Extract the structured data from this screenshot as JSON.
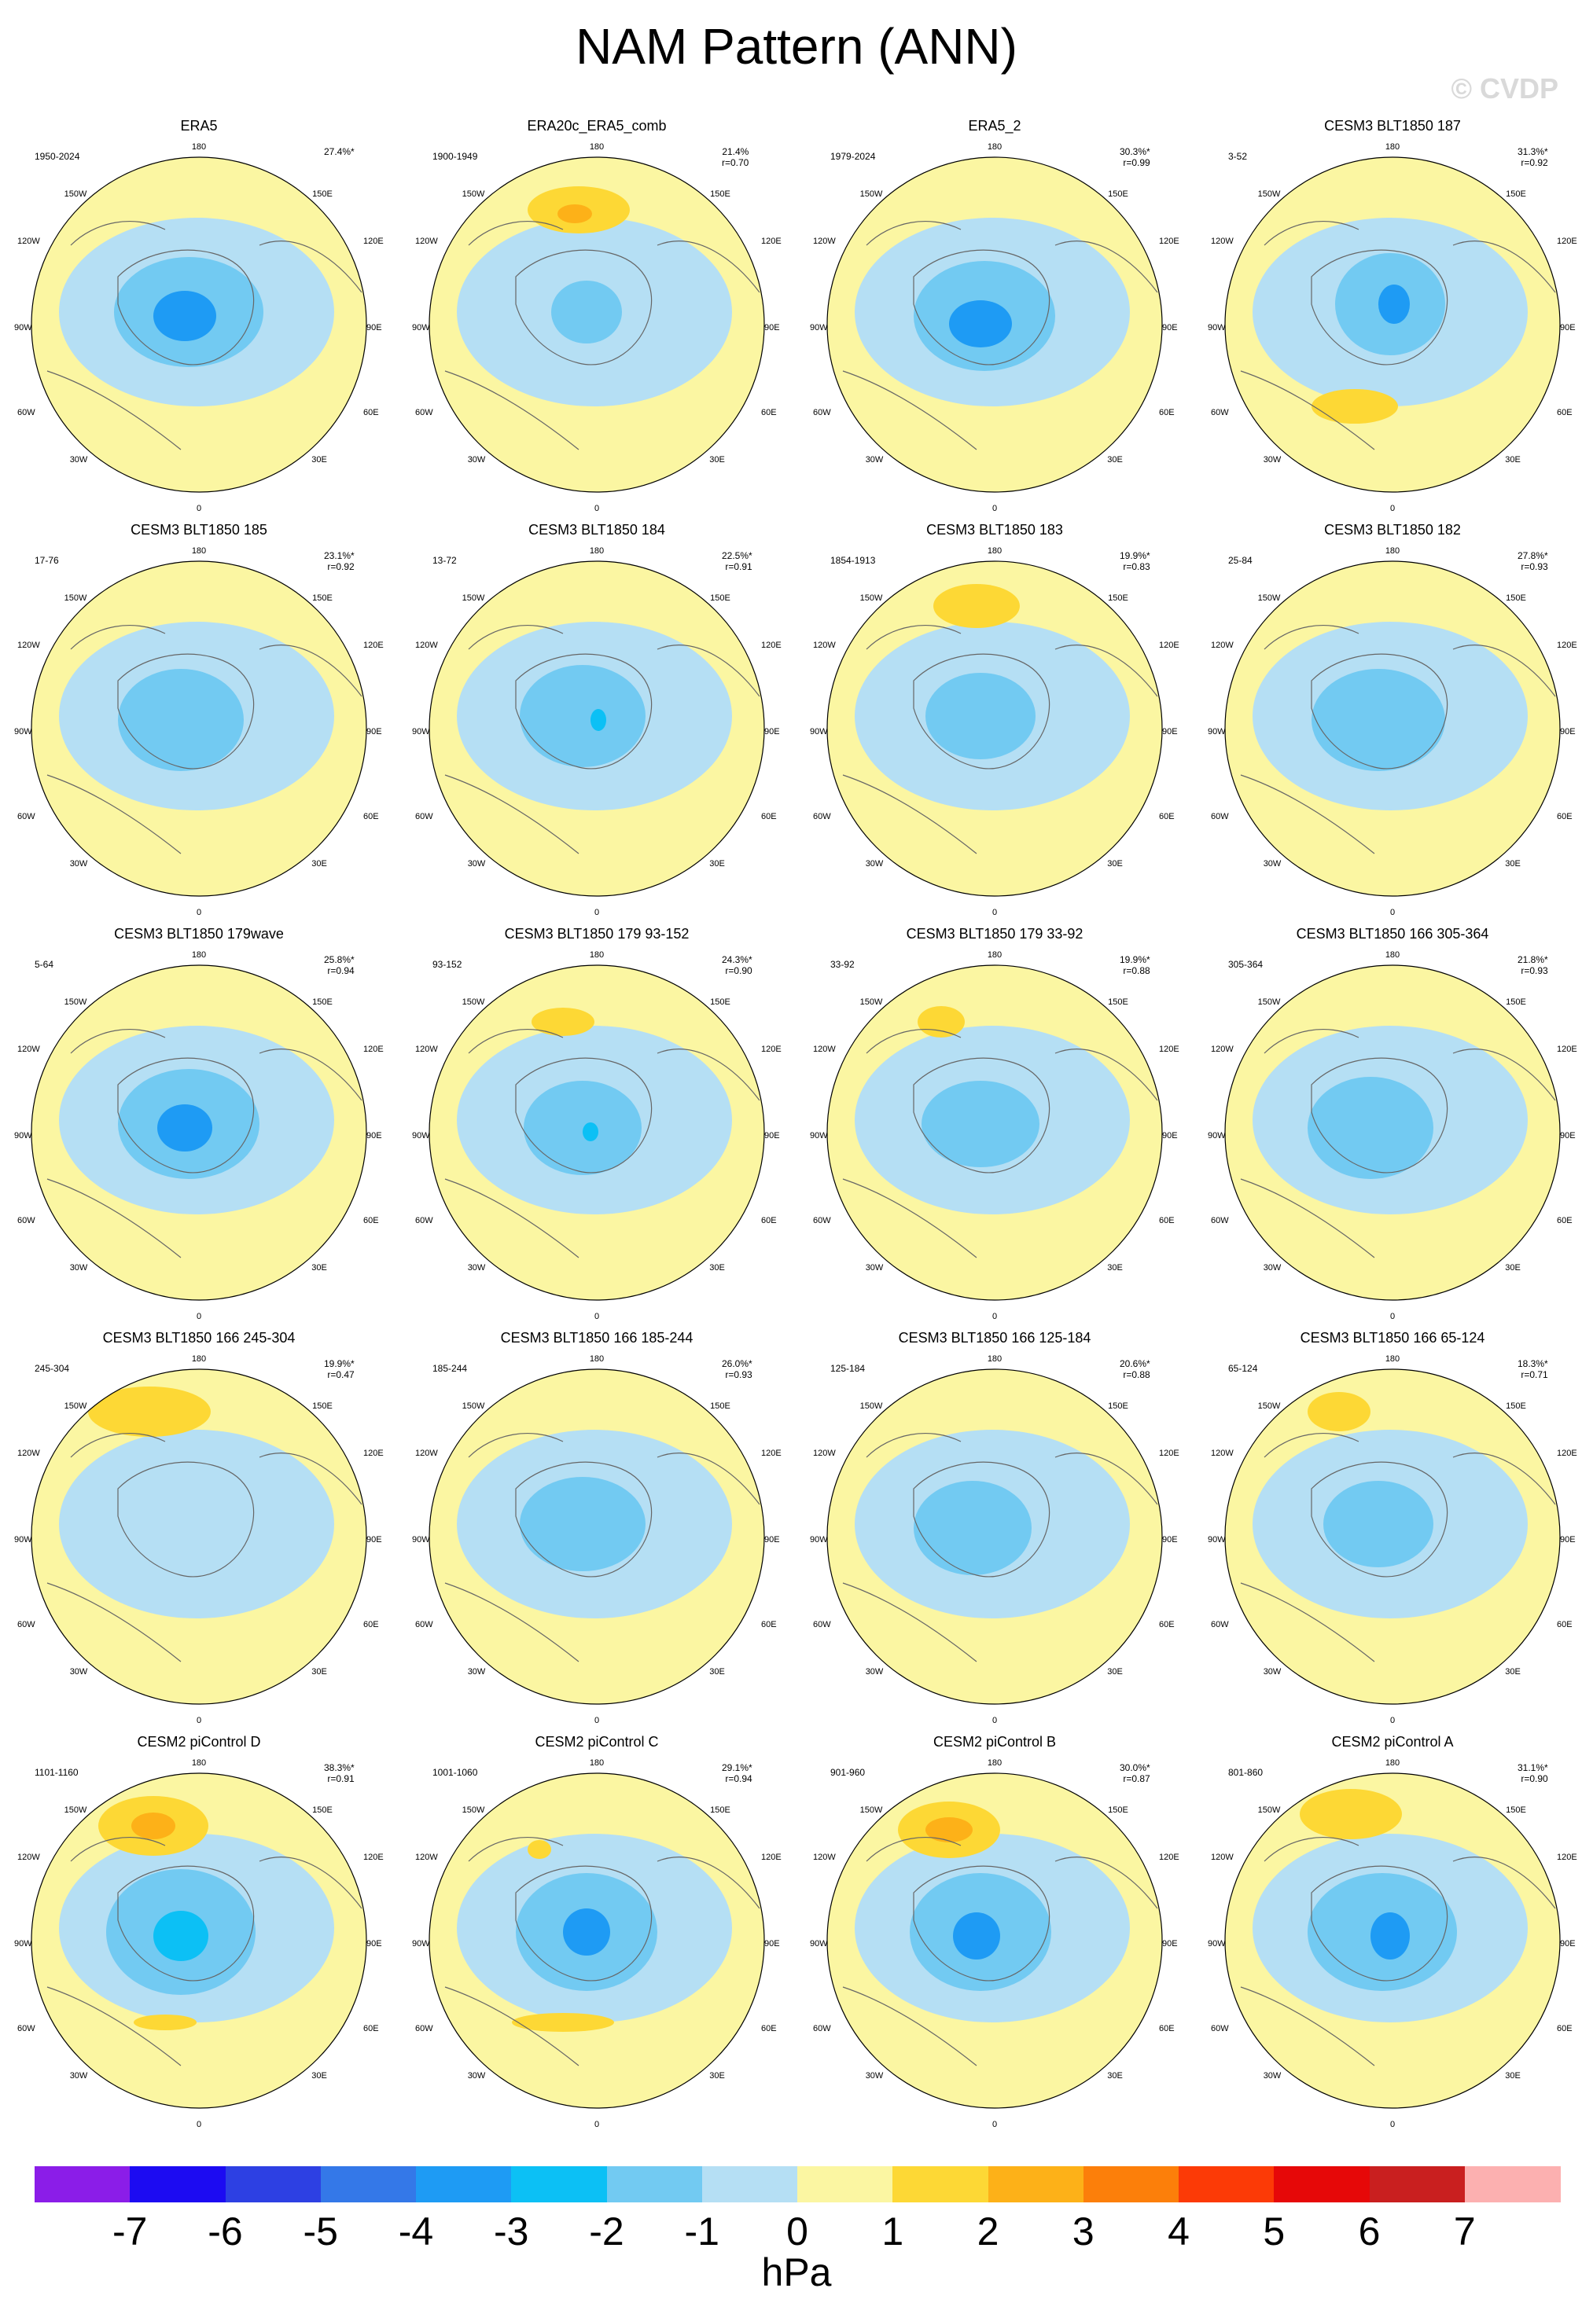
{
  "title": "NAM Pattern (ANN)",
  "watermark": "© CVDP",
  "colors": {
    "yellow": "#fbf6a2",
    "lightblue": "#b5dff4",
    "ocean_edge": "#000000",
    "coast": "#666666"
  },
  "lon_labels": {
    "top": "180",
    "upper_left": "150W",
    "upper_right": "150E",
    "left_high": "120W",
    "right_high": "120E",
    "left": "90W",
    "right": "90E",
    "left_low": "60W",
    "right_low": "60E",
    "lower_left": "30W",
    "lower_right": "30E",
    "bottom": "0"
  },
  "panels": [
    {
      "title": "ERA5",
      "years": "1950-2024",
      "pct": "27.4%*",
      "r": ""
    },
    {
      "title": "ERA20c_ERA5_comb",
      "years": "1900-1949",
      "pct": "21.4%",
      "r": "r=0.70"
    },
    {
      "title": "ERA5_2",
      "years": "1979-2024",
      "pct": "30.3%*",
      "r": "r=0.99"
    },
    {
      "title": "CESM3 BLT1850 187",
      "years": "3-52",
      "pct": "31.3%*",
      "r": "r=0.92"
    },
    {
      "title": "CESM3 BLT1850 185",
      "years": "17-76",
      "pct": "23.1%*",
      "r": "r=0.92"
    },
    {
      "title": "CESM3 BLT1850 184",
      "years": "13-72",
      "pct": "22.5%*",
      "r": "r=0.91"
    },
    {
      "title": "CESM3 BLT1850 183",
      "years": "1854-1913",
      "pct": "19.9%*",
      "r": "r=0.83"
    },
    {
      "title": "CESM3 BLT1850 182",
      "years": "25-84",
      "pct": "27.8%*",
      "r": "r=0.93"
    },
    {
      "title": "CESM3 BLT1850 179wave",
      "years": "5-64",
      "pct": "25.8%*",
      "r": "r=0.94"
    },
    {
      "title": "CESM3 BLT1850 179 93-152",
      "years": "93-152",
      "pct": "24.3%*",
      "r": "r=0.90"
    },
    {
      "title": "CESM3 BLT1850 179 33-92",
      "years": "33-92",
      "pct": "19.9%*",
      "r": "r=0.88"
    },
    {
      "title": "CESM3 BLT1850 166 305-364",
      "years": "305-364",
      "pct": "21.8%*",
      "r": "r=0.93"
    },
    {
      "title": "CESM3 BLT1850 166 245-304",
      "years": "245-304",
      "pct": "19.9%*",
      "r": "r=0.47"
    },
    {
      "title": "CESM3 BLT1850 166 185-244",
      "years": "185-244",
      "pct": "26.0%*",
      "r": "r=0.93"
    },
    {
      "title": "CESM3 BLT1850 166 125-184",
      "years": "125-184",
      "pct": "20.6%*",
      "r": "r=0.88"
    },
    {
      "title": "CESM3 BLT1850 166 65-124",
      "years": "65-124",
      "pct": "18.3%*",
      "r": "r=0.71"
    },
    {
      "title": "CESM2 piControl D",
      "years": "1101-1160",
      "pct": "38.3%*",
      "r": "r=0.91"
    },
    {
      "title": "CESM2 piControl C",
      "years": "1001-1060",
      "pct": "29.1%*",
      "r": "r=0.94"
    },
    {
      "title": "CESM2 piControl B",
      "years": "901-960",
      "pct": "30.0%*",
      "r": "r=0.87"
    },
    {
      "title": "CESM2 piControl A",
      "years": "801-860",
      "pct": "31.1%*",
      "r": "r=0.90"
    }
  ],
  "colorbar": {
    "colors": [
      "#8b1de8",
      "#1c0bf2",
      "#2d40e3",
      "#3478e8",
      "#1e9bf4",
      "#0cc0f5",
      "#72caf2",
      "#b5dff4",
      "#fbf6a2",
      "#fdd835",
      "#fdb118",
      "#fc7f0a",
      "#fc3a06",
      "#e60808",
      "#c91f1f",
      "#fcb0b0"
    ],
    "ticks": [
      "-7",
      "-6",
      "-5",
      "-4",
      "-3",
      "-2",
      "-1",
      "0",
      "1",
      "2",
      "3",
      "4",
      "5",
      "6",
      "7"
    ],
    "units": "hPa"
  }
}
